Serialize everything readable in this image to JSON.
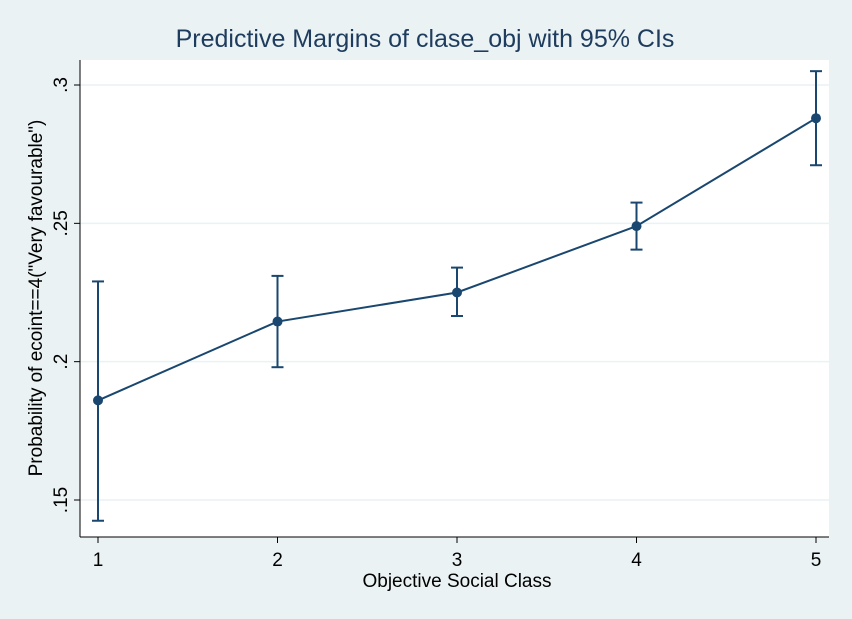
{
  "chart_data": {
    "type": "line",
    "title": "Predictive Margins of clase_obj with 95% CIs",
    "xlabel": "Objective Social Class",
    "ylabel": "Probability of ecoint==4(\"Very favourable\")",
    "x": [
      1,
      2,
      3,
      4,
      5
    ],
    "x_tick_labels": [
      "1",
      "2",
      "3",
      "4",
      "5"
    ],
    "y_ticks": [
      0.15,
      0.2,
      0.25,
      0.3
    ],
    "y_tick_labels": [
      ".15",
      ".2",
      ".25",
      ".3"
    ],
    "xlim": [
      1,
      5
    ],
    "ylim": [
      0.1425,
      0.305
    ],
    "grid": true,
    "series": [
      {
        "values": [
          0.186,
          0.2145,
          0.225,
          0.249,
          0.288
        ],
        "ci_lower": [
          0.1425,
          0.198,
          0.2165,
          0.2405,
          0.271
        ],
        "ci_upper": [
          0.229,
          0.231,
          0.234,
          0.2575,
          0.305
        ]
      }
    ],
    "colors": {
      "background": "#eaf2f3",
      "plot_background": "#ffffff",
      "series": "#1a476f",
      "title": "#1e3c5e",
      "grid": "#eaf2f3"
    }
  }
}
